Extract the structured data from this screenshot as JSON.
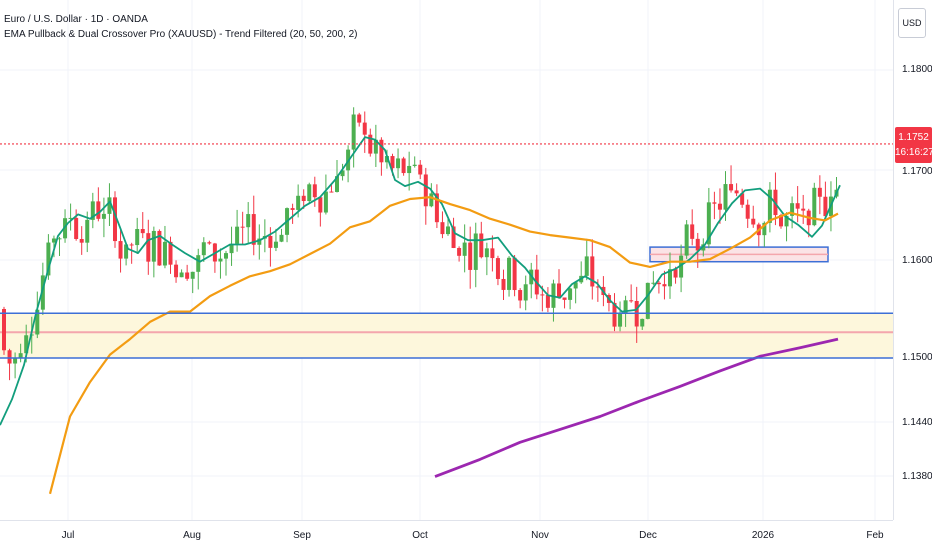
{
  "header": {
    "title": "Euro / U.S. Dollar · 1D · OANDA",
    "indicator": "EMA Pullback & Dual Crossover Pro (XAUUSD) - Trend Filtered (20, 50, 200, 2)"
  },
  "price_scale": {
    "currency": "USD",
    "ticks": [
      "1.1800",
      "1.1700",
      "1.1600",
      "1.1500",
      "1.1440",
      "1.1380"
    ],
    "last_price": "1.1752",
    "countdown": "16:16:27"
  },
  "time_scale": {
    "labels": [
      "Jul",
      "Aug",
      "Sep",
      "Oct",
      "Nov",
      "Dec",
      "2026",
      "Feb"
    ]
  },
  "colors": {
    "up": "#26a69a",
    "candle_up": "#4caf50",
    "candle_down": "#f23645",
    "ema20": "#129e7d",
    "ema50": "#f39c12",
    "ema200": "#9c27b0",
    "zone_line": "#3d6fd6",
    "zone_fill": "#fdf7dc",
    "zone_mid": "#f4a6ad",
    "price_line": "#f23645"
  },
  "chart_data": {
    "type": "candlestick",
    "symbol": "Euro / U.S. Dollar",
    "timeframe": "1D",
    "last_price": 1.1752,
    "ylim": [
      1.1345,
      1.1875
    ],
    "x_labels": [
      "Jul",
      "Aug",
      "Sep",
      "Oct",
      "Nov",
      "Dec",
      "2026",
      "Feb"
    ],
    "y_ticks": [
      1.18,
      1.17,
      1.16,
      1.15,
      1.144,
      1.138
    ],
    "series": [
      {
        "name": "EMA 20",
        "values": [
          [
            0,
            1.1425
          ],
          [
            12,
            1.1455
          ],
          [
            24,
            1.1495
          ],
          [
            36,
            1.1555
          ],
          [
            48,
            1.1605
          ],
          [
            58,
            1.1645
          ],
          [
            68,
            1.166
          ],
          [
            78,
            1.167
          ],
          [
            90,
            1.1665
          ],
          [
            100,
            1.1673
          ],
          [
            110,
            1.1685
          ],
          [
            120,
            1.1655
          ],
          [
            128,
            1.163
          ],
          [
            138,
            1.1625
          ],
          [
            148,
            1.164
          ],
          [
            160,
            1.1645
          ],
          [
            172,
            1.1635
          ],
          [
            185,
            1.1625
          ],
          [
            200,
            1.1615
          ],
          [
            215,
            1.1625
          ],
          [
            230,
            1.1635
          ],
          [
            245,
            1.1635
          ],
          [
            260,
            1.164
          ],
          [
            275,
            1.165
          ],
          [
            290,
            1.1665
          ],
          [
            305,
            1.168
          ],
          [
            320,
            1.169
          ],
          [
            335,
            1.171
          ],
          [
            350,
            1.1735
          ],
          [
            365,
            1.176
          ],
          [
            375,
            1.1757
          ],
          [
            385,
            1.1745
          ],
          [
            395,
            1.171
          ],
          [
            405,
            1.1703
          ],
          [
            418,
            1.1708
          ],
          [
            430,
            1.17
          ],
          [
            442,
            1.1682
          ],
          [
            455,
            1.1648
          ],
          [
            468,
            1.164
          ],
          [
            482,
            1.164
          ],
          [
            498,
            1.1643
          ],
          [
            512,
            1.1622
          ],
          [
            525,
            1.1608
          ],
          [
            535,
            1.1593
          ],
          [
            548,
            1.1576
          ],
          [
            560,
            1.1573
          ],
          [
            572,
            1.1589
          ],
          [
            585,
            1.1598
          ],
          [
            597,
            1.159
          ],
          [
            610,
            1.157
          ],
          [
            622,
            1.1557
          ],
          [
            636,
            1.1559
          ],
          [
            648,
            1.1576
          ],
          [
            662,
            1.16
          ],
          [
            676,
            1.1607
          ],
          [
            690,
            1.1618
          ],
          [
            705,
            1.1635
          ],
          [
            718,
            1.166
          ],
          [
            732,
            1.1683
          ],
          [
            745,
            1.1698
          ],
          [
            760,
            1.17
          ],
          [
            772,
            1.1688
          ],
          [
            785,
            1.1668
          ],
          [
            798,
            1.1658
          ],
          [
            812,
            1.1644
          ],
          [
            822,
            1.1657
          ],
          [
            833,
            1.1686
          ],
          [
            840,
            1.1704
          ]
        ]
      },
      {
        "name": "EMA 50",
        "values": [
          [
            50,
            1.1345
          ],
          [
            70,
            1.1435
          ],
          [
            90,
            1.1475
          ],
          [
            110,
            1.1507
          ],
          [
            130,
            1.1525
          ],
          [
            150,
            1.1545
          ],
          [
            170,
            1.1557
          ],
          [
            190,
            1.1557
          ],
          [
            210,
            1.1575
          ],
          [
            230,
            1.1587
          ],
          [
            250,
            1.1598
          ],
          [
            270,
            1.1604
          ],
          [
            290,
            1.1612
          ],
          [
            310,
            1.1624
          ],
          [
            330,
            1.1636
          ],
          [
            350,
            1.1655
          ],
          [
            370,
            1.1662
          ],
          [
            390,
            1.168
          ],
          [
            410,
            1.1688
          ],
          [
            430,
            1.169
          ],
          [
            450,
            1.1682
          ],
          [
            470,
            1.1675
          ],
          [
            490,
            1.1665
          ],
          [
            510,
            1.1658
          ],
          [
            530,
            1.165
          ],
          [
            550,
            1.1646
          ],
          [
            570,
            1.1643
          ],
          [
            590,
            1.164
          ],
          [
            610,
            1.1632
          ],
          [
            630,
            1.1614
          ],
          [
            650,
            1.1609
          ],
          [
            670,
            1.1615
          ],
          [
            690,
            1.1615
          ],
          [
            710,
            1.1618
          ],
          [
            730,
            1.163
          ],
          [
            750,
            1.1643
          ],
          [
            770,
            1.1663
          ],
          [
            790,
            1.1672
          ],
          [
            810,
            1.1666
          ],
          [
            825,
            1.1663
          ],
          [
            838,
            1.1671
          ]
        ]
      },
      {
        "name": "EMA 200",
        "values": [
          [
            435,
            1.1365
          ],
          [
            480,
            1.1385
          ],
          [
            520,
            1.1405
          ],
          [
            560,
            1.142
          ],
          [
            600,
            1.1435
          ],
          [
            640,
            1.1453
          ],
          [
            680,
            1.147
          ],
          [
            720,
            1.1488
          ],
          [
            760,
            1.1505
          ],
          [
            800,
            1.1515
          ],
          [
            838,
            1.1525
          ]
        ]
      }
    ],
    "horizontal_levels": [
      {
        "price": 1.1555,
        "style": "zone-top"
      },
      {
        "price": 1.1533,
        "style": "zone-mid"
      },
      {
        "price": 1.1503,
        "style": "zone-bottom"
      },
      {
        "price": 1.1752,
        "style": "last-price"
      }
    ],
    "boxes": [
      {
        "x1": 650,
        "x2": 828,
        "y_top": 1.1632,
        "y_bottom": 1.1615
      }
    ]
  }
}
